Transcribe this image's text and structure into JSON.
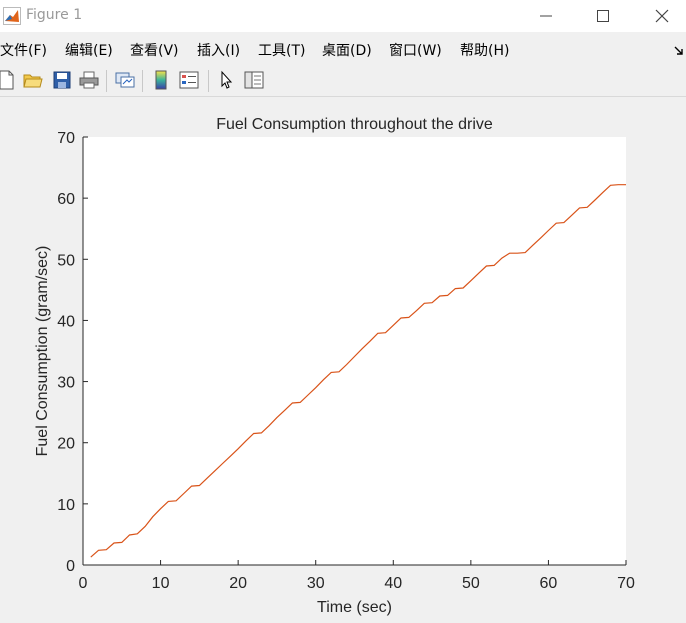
{
  "window": {
    "title": "Figure 1"
  },
  "menu": [
    "文件(F)",
    "编辑(E)",
    "查看(V)",
    "插入(I)",
    "工具(T)",
    "桌面(D)",
    "窗口(W)",
    "帮助(H)"
  ],
  "toolbar": {
    "icons": [
      "new-figure-icon",
      "open-file-icon",
      "save-icon",
      "print-icon",
      "link-plot-icon",
      "insert-colorbar-icon",
      "insert-legend-icon",
      "edit-plot-arrow-icon",
      "property-inspector-icon"
    ]
  },
  "chart_data": {
    "type": "line",
    "title": "Fuel Consumption throughout the drive",
    "xlabel": "Time (sec)",
    "ylabel": "Fuel Consumption (gram/sec)",
    "xlim": [
      0,
      70
    ],
    "ylim": [
      0,
      70
    ],
    "xticks": [
      "0",
      "10",
      "20",
      "30",
      "40",
      "50",
      "60",
      "70"
    ],
    "yticks": [
      "0",
      "10",
      "20",
      "30",
      "40",
      "50",
      "60",
      "70"
    ],
    "grid": false,
    "line_color": "#d95319",
    "series": [
      {
        "x": [
          1,
          2,
          3,
          4,
          5,
          6,
          7,
          8,
          9,
          10,
          11,
          12,
          13,
          14,
          15,
          16,
          17,
          18,
          19,
          20,
          21,
          22,
          23,
          24,
          25,
          26,
          27,
          28,
          29,
          30,
          31,
          32,
          33,
          34,
          35,
          36,
          37,
          38,
          39,
          40,
          41,
          42,
          43,
          44,
          45,
          46,
          47,
          48,
          49,
          50,
          51,
          52,
          53,
          54,
          55,
          56,
          57,
          58,
          59,
          60,
          61,
          62,
          63,
          64,
          65,
          66,
          67,
          68,
          69,
          70
        ],
        "y": [
          1.3,
          2.4,
          2.5,
          3.6,
          3.7,
          4.9,
          5.1,
          6.3,
          7.9,
          9.2,
          10.4,
          10.5,
          11.7,
          12.9,
          13.0,
          14.2,
          15.4,
          16.6,
          17.8,
          19.0,
          20.3,
          21.5,
          21.6,
          22.8,
          24.1,
          25.3,
          26.5,
          26.6,
          27.8,
          29.0,
          30.3,
          31.5,
          31.6,
          32.8,
          34.1,
          35.4,
          36.6,
          37.9,
          38.0,
          39.2,
          40.4,
          40.5,
          41.6,
          42.8,
          42.9,
          44.0,
          44.1,
          45.2,
          45.3,
          46.5,
          47.7,
          48.9,
          49.0,
          50.2,
          51.0,
          51.0,
          51.1,
          52.3,
          53.5,
          54.7,
          55.9,
          56.0,
          57.2,
          58.4,
          58.5,
          59.7,
          60.9,
          62.1,
          62.2,
          62.2
        ]
      }
    ]
  }
}
